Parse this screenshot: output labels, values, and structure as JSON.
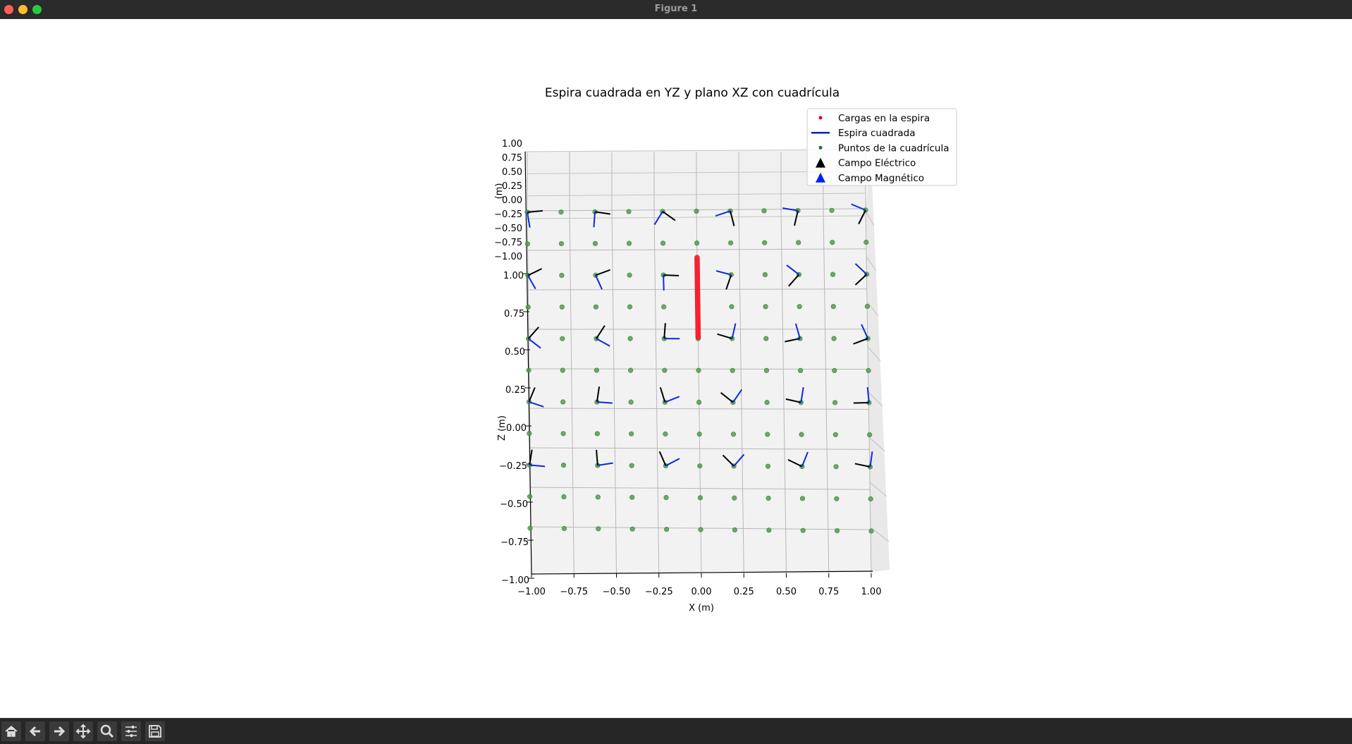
{
  "window": {
    "title": "Figure 1"
  },
  "toolbar": {
    "buttons": [
      {
        "name": "home-button",
        "icon": "home-icon"
      },
      {
        "name": "back-button",
        "icon": "arrow-left-icon"
      },
      {
        "name": "forward-button",
        "icon": "arrow-right-icon"
      },
      {
        "name": "pan-button",
        "icon": "move-icon"
      },
      {
        "name": "zoom-button",
        "icon": "magnifier-icon"
      },
      {
        "name": "configure-subplots-button",
        "icon": "sliders-icon"
      },
      {
        "name": "save-button",
        "icon": "floppy-icon"
      }
    ]
  },
  "chart_data": {
    "type": "scatter",
    "title": "Espira cuadrada en YZ y plano XZ con cuadrícula",
    "xlabel": "X (m)",
    "ylabel": "(m)",
    "zlabel": "Z (m)",
    "xlim": [
      -1.0,
      1.0
    ],
    "ylim": [
      -1.0,
      1.0
    ],
    "zlim": [
      -1.0,
      1.0
    ],
    "x_ticks": [
      "−1.00",
      "−0.75",
      "−0.50",
      "−0.25",
      "0.00",
      "0.25",
      "0.50",
      "0.75",
      "1.00"
    ],
    "y_ticks": [
      "1.00",
      "0.75",
      "0.50",
      "0.25",
      "0.00",
      "−0.25",
      "−0.50",
      "−0.75",
      "−1.00"
    ],
    "z_ticks": [
      "1.00",
      "0.75",
      "0.50",
      "0.25",
      "0.00",
      "−0.25",
      "−0.50",
      "−0.75",
      "−1.00"
    ],
    "grid": true,
    "legend_position": "top-right",
    "legend": [
      {
        "label": "Cargas en la espira",
        "marker": "dot",
        "color": "#e8000b"
      },
      {
        "label": "Espira cuadrada",
        "marker": "line",
        "color": "#0022cc"
      },
      {
        "label": "Puntos de la cuadrícula",
        "marker": "dot",
        "color": "#1a7a1a"
      },
      {
        "label": "Campo Eléctrico",
        "marker": "triangle",
        "color": "#000000"
      },
      {
        "label": "Campo Magnético",
        "marker": "triangle",
        "color": "#0022ee"
      }
    ],
    "grid_points": {
      "x": [
        -1.0,
        -0.8,
        -0.6,
        -0.4,
        -0.2,
        0.0,
        0.2,
        0.4,
        0.6,
        0.8,
        1.0
      ],
      "z": [
        1.0,
        0.8,
        0.6,
        0.4,
        0.2,
        0.0,
        -0.2,
        -0.4,
        -0.6,
        -0.8,
        -1.0
      ],
      "y": 0.0
    },
    "loop": {
      "plane": "YZ",
      "x": 0.0,
      "z_range": [
        0.2,
        0.7
      ],
      "charges": 40
    },
    "field_arrows_x": [
      -1.0,
      -0.6,
      -0.2,
      0.2,
      0.6,
      1.0
    ],
    "field_arrows_z": [
      1.0,
      0.6,
      0.2,
      -0.2,
      -0.6
    ]
  }
}
